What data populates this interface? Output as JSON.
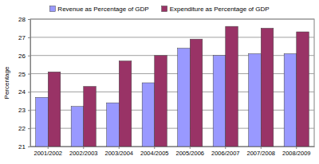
{
  "chart_data": {
    "type": "bar",
    "y_label": "Percentage",
    "categories": [
      "2001/2002",
      "2002/2003",
      "2003/2004",
      "2004/2005",
      "2005/2006",
      "2006/2007",
      "2007/2008",
      "2008/2009"
    ],
    "series": [
      {
        "name": "Revenue as Percentage of GDP",
        "color": "#9999ff",
        "values": [
          23.7,
          23.2,
          23.4,
          24.5,
          26.4,
          26.0,
          26.1,
          26.1
        ]
      },
      {
        "name": "Expenditure as Percentage of GDP",
        "color": "#993366",
        "values": [
          25.1,
          24.3,
          25.7,
          26.0,
          26.9,
          27.6,
          27.5,
          27.3
        ]
      }
    ],
    "ylim": [
      21,
      28
    ],
    "yticks": [
      21,
      22,
      23,
      24,
      25,
      26,
      27,
      28
    ],
    "grid": true,
    "legend": "top"
  }
}
